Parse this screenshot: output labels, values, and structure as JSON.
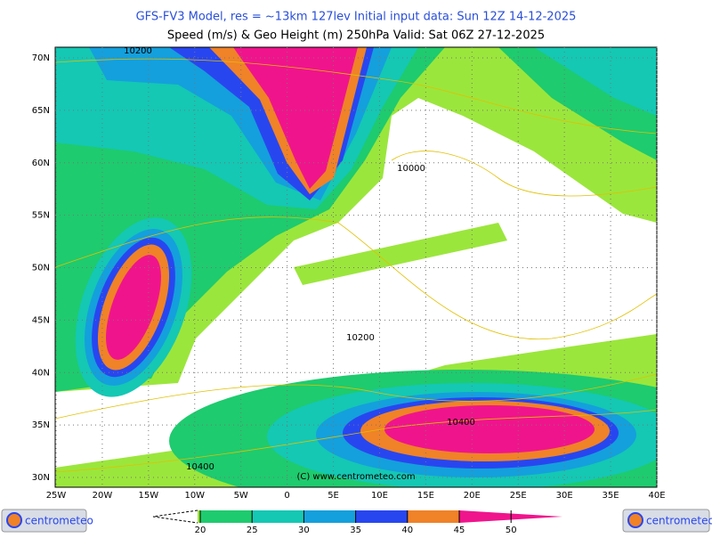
{
  "header": {
    "line1": "GFS-FV3 Model, res = ~13km 127lev    Initial input data: Sun 12Z 14-12-2025",
    "line2": "Speed (m/s) & Geo Height (m) 250hPa  Valid: Sat 06Z 27-12-2025"
  },
  "map": {
    "lat_labels": [
      "30N",
      "35N",
      "40N",
      "45N",
      "50N",
      "55N",
      "60N",
      "65N",
      "70N"
    ],
    "lon_labels": [
      "25W",
      "20W",
      "15W",
      "10W",
      "5W",
      "0",
      "5E",
      "10E",
      "15E",
      "20E",
      "25E",
      "30E",
      "35E",
      "40E"
    ],
    "contour_labels": [
      "10200",
      "10000",
      "10200",
      "10400",
      "10400"
    ],
    "copyright": "(C) www.centrometeo.com"
  },
  "colorbar": {
    "ticks": [
      20,
      25,
      30,
      35,
      40,
      45,
      50
    ],
    "colors": [
      "#9be63c",
      "#1ecb6e",
      "#14c8b4",
      "#14a0dc",
      "#2846f0",
      "#f08228",
      "#f0148c"
    ]
  },
  "logos": {
    "left": "centrometeo",
    "right": "centrometeo"
  }
}
